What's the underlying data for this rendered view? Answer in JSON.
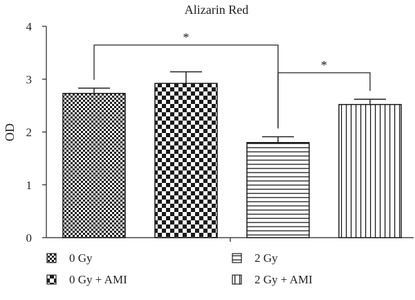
{
  "chart_data": {
    "type": "bar",
    "title": "Alizarin Red",
    "ylabel": "OD",
    "xlabel": "",
    "ylim": [
      0,
      4
    ],
    "yticks": [
      0,
      1,
      2,
      3,
      4
    ],
    "grid": false,
    "legend_position": "bottom",
    "series": [
      {
        "name": "0 Gy",
        "value": 2.73,
        "error": 0.1,
        "pattern": "fine-checker"
      },
      {
        "name": "0 Gy + AMI",
        "value": 2.92,
        "error": 0.22,
        "pattern": "coarse-checker"
      },
      {
        "name": "2 Gy",
        "value": 1.8,
        "error": 0.11,
        "pattern": "horizontal-lines"
      },
      {
        "name": "2 Gy + AMI",
        "value": 2.52,
        "error": 0.1,
        "pattern": "vertical-lines"
      }
    ],
    "annotations": [
      {
        "text": "*",
        "from": "0 Gy",
        "to": "2 Gy"
      },
      {
        "text": "*",
        "from": "2 Gy",
        "to": "2 Gy + AMI"
      }
    ]
  }
}
